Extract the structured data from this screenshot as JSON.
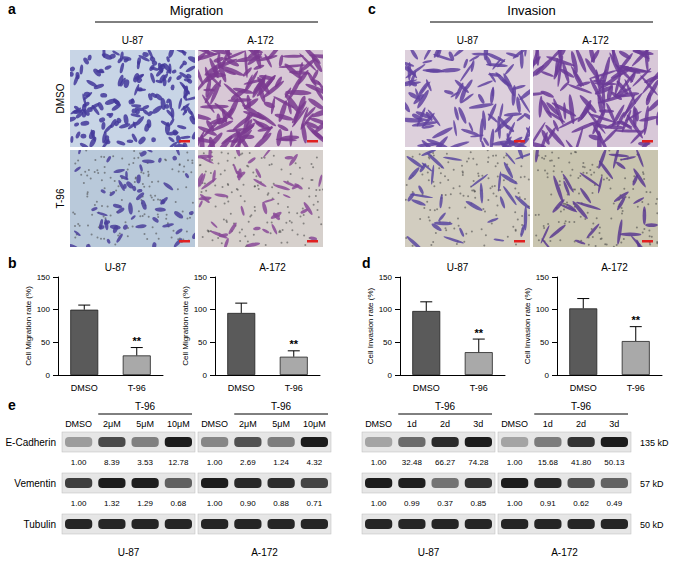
{
  "panels": {
    "a": {
      "label": "a",
      "title": "Migration",
      "columns": [
        "U-87",
        "A-172"
      ],
      "rows": [
        "DMSO",
        "T-96"
      ]
    },
    "b": {
      "label": "b"
    },
    "c": {
      "label": "c",
      "title": "Invasion",
      "columns": [
        "U-87",
        "A-172"
      ],
      "rows": [
        "DMSO",
        "T-96"
      ]
    },
    "d": {
      "label": "d"
    },
    "e": {
      "label": "e",
      "treatment": "T-96",
      "rows": [
        {
          "name": "E-Cadherin",
          "size": "135 kD"
        },
        {
          "name": "Vementin",
          "size": "57 kD"
        },
        {
          "name": "Tubulin",
          "size": "50 kD"
        }
      ],
      "groups": [
        {
          "cell": "U-87",
          "lanes": [
            "DMSO",
            "2μM",
            "5μM",
            "10μM"
          ],
          "quant": {
            "E-Cadherin": [
              "1.00",
              "8.39",
              "3.53",
              "12.78"
            ],
            "Vementin": [
              "1.00",
              "1.32",
              "1.29",
              "0.68"
            ]
          }
        },
        {
          "cell": "A-172",
          "lanes": [
            "DMSO",
            "2μM",
            "5μM",
            "10μM"
          ],
          "quant": {
            "E-Cadherin": [
              "1.00",
              "2.69",
              "1.24",
              "4.32"
            ],
            "Vementin": [
              "1.00",
              "0.90",
              "0.88",
              "0.71"
            ]
          }
        },
        {
          "cell": "U-87",
          "lanes": [
            "DMSO",
            "1d",
            "2d",
            "3d"
          ],
          "quant": {
            "E-Cadherin": [
              "1.00",
              "32.48",
              "66.27",
              "74.28"
            ],
            "Vementin": [
              "1.00",
              "0.99",
              "0.37",
              "0.85"
            ]
          }
        },
        {
          "cell": "A-172",
          "lanes": [
            "DMSO",
            "1d",
            "2d",
            "3d"
          ],
          "quant": {
            "E-Cadherin": [
              "1.00",
              "15.68",
              "41.80",
              "50.13"
            ],
            "Vementin": [
              "1.00",
              "0.91",
              "0.62",
              "0.49"
            ]
          }
        }
      ]
    }
  },
  "chart_data": [
    {
      "type": "bar",
      "title": "U-87",
      "ylabel": "Cell Migration rate (%)",
      "categories": [
        "DMSO",
        "T-96"
      ],
      "values": [
        100,
        30
      ],
      "errors": [
        7,
        12
      ],
      "colors": [
        "#5a5a5a",
        "#a9a9a9"
      ],
      "ylim": [
        0,
        150
      ],
      "yticks": [
        0,
        50,
        100,
        150
      ],
      "grid": false,
      "annotations": [
        {
          "x": "T-96",
          "text": "**"
        }
      ]
    },
    {
      "type": "bar",
      "title": "A-172",
      "ylabel": "Cell Migration rate (%)",
      "categories": [
        "DMSO",
        "T-96"
      ],
      "values": [
        95,
        28
      ],
      "errors": [
        15,
        9
      ],
      "colors": [
        "#5a5a5a",
        "#a9a9a9"
      ],
      "ylim": [
        0,
        150
      ],
      "yticks": [
        0,
        50,
        100,
        150
      ],
      "grid": false,
      "annotations": [
        {
          "x": "T-96",
          "text": "**"
        }
      ]
    },
    {
      "type": "bar",
      "title": "U-87",
      "ylabel": "Cell Invasion rate (%)",
      "categories": [
        "DMSO",
        "T-96"
      ],
      "values": [
        98,
        35
      ],
      "errors": [
        14,
        20
      ],
      "colors": [
        "#5a5a5a",
        "#a9a9a9"
      ],
      "ylim": [
        0,
        150
      ],
      "yticks": [
        0,
        50,
        100,
        150
      ],
      "grid": false,
      "annotations": [
        {
          "x": "T-96",
          "text": "**"
        }
      ]
    },
    {
      "type": "bar",
      "title": "A-172",
      "ylabel": "Cell Invasion rate (%)",
      "categories": [
        "DMSO",
        "T-96"
      ],
      "values": [
        102,
        52
      ],
      "errors": [
        15,
        22
      ],
      "colors": [
        "#5a5a5a",
        "#a9a9a9"
      ],
      "ylim": [
        0,
        150
      ],
      "yticks": [
        0,
        50,
        100,
        150
      ],
      "grid": false,
      "annotations": [
        {
          "x": "T-96",
          "text": "**"
        }
      ]
    }
  ]
}
